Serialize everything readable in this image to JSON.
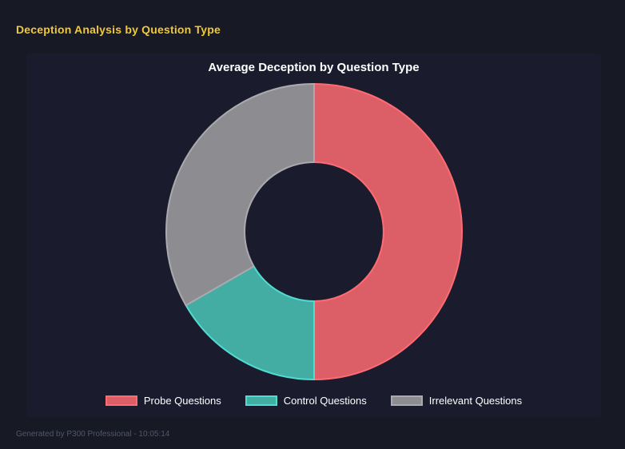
{
  "page": {
    "heading": "Deception Analysis by Question Type",
    "footer": "Generated by P300 Professional - 10:05:14"
  },
  "colors": {
    "page_bg": "#171925",
    "panel_bg": "#1a1c2e",
    "heading_text": "#f0c83a",
    "title_text": "#ffffff",
    "legend_text": "#ffffff",
    "footer_text": "#51566a"
  },
  "chart_data": {
    "type": "pie",
    "variant": "doughnut",
    "title": "Average Deception by Question Type",
    "legend_position": "bottom",
    "cutout_ratio": 0.47,
    "start_angle_deg": 0,
    "direction": "clockwise",
    "segments": [
      {
        "label": "Probe Questions",
        "percent": 50.0,
        "angle_deg": 180,
        "color": "#dc5f67",
        "border_color": "#ff6b72"
      },
      {
        "label": "Control Questions",
        "percent": 16.7,
        "angle_deg": 60,
        "color": "#43ada4",
        "border_color": "#4fdcd1"
      },
      {
        "label": "Irrelevant Questions",
        "percent": 33.3,
        "angle_deg": 120,
        "color": "#8c8c91",
        "border_color": "#a9a9ae"
      }
    ]
  }
}
